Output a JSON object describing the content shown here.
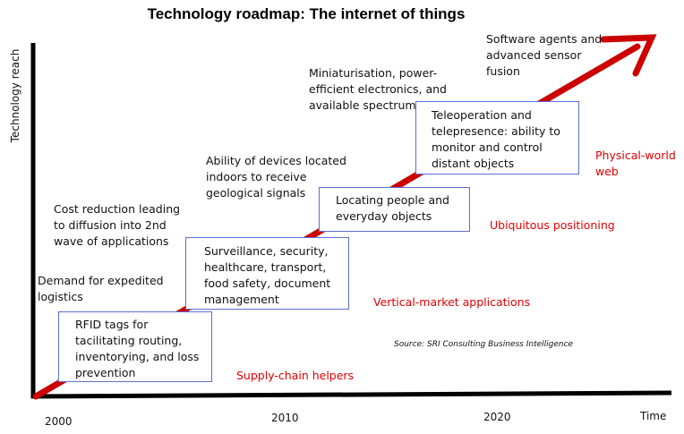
{
  "title": "Technology roadmap: The internet of things",
  "axes": {
    "y_label": "Technology reach",
    "x_label": "Time",
    "x_ticks": [
      "2000",
      "2010",
      "2020"
    ]
  },
  "stages": [
    {
      "box_lines": [
        "RFID tags for",
        "tacilitating routing,",
        "inventorying, and loss",
        "prevention"
      ],
      "driver_lines": [
        "Demand for expedited",
        "logistics"
      ],
      "category": "Supply-chain helpers"
    },
    {
      "box_lines": [
        "Surveillance, security,",
        "healthcare, transport,",
        "food safety, document",
        "management"
      ],
      "driver_lines": [
        "Cost reduction leading",
        "to diffusion into 2nd",
        "wave of applications"
      ],
      "category": "Vertical-market applications"
    },
    {
      "box_lines": [
        "Locating people and",
        "everyday objects"
      ],
      "driver_lines": [
        "Ability of devices located",
        "indoors to receive",
        "geological signals"
      ],
      "category": "Ubiquitous positioning"
    },
    {
      "box_lines": [
        "Teleoperation and",
        "telepresence: ability to",
        "monitor and control",
        "distant objects"
      ],
      "driver_lines": [
        "Miniaturisation, power-",
        "efficient electronics, and",
        "available spectrum"
      ],
      "category_lines": [
        "Physical-world",
        "web"
      ]
    },
    {
      "driver_lines": [
        "Software agents and",
        "advanced sensor",
        "fusion"
      ]
    }
  ],
  "source": "Source: SRI Consulting Business Intelligence",
  "colors": {
    "arrow": "#cc0000",
    "category_text": "#e00000",
    "box_border": "#5a6fd6",
    "axis": "#000000"
  }
}
